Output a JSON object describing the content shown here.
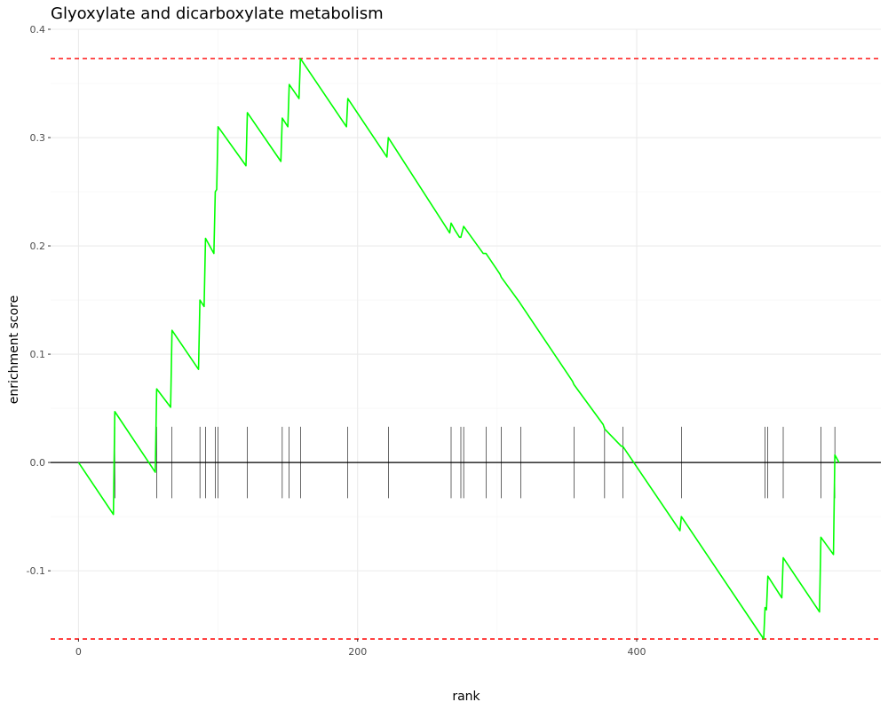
{
  "chart_data": {
    "type": "line",
    "title": "Glyoxylate and dicarboxylate metabolism",
    "xlabel": "rank",
    "ylabel": "enrichment score",
    "xlim": [
      -20,
      575
    ],
    "ylim": [
      -0.163,
      0.4
    ],
    "x_ticks": [
      0,
      200,
      400
    ],
    "x_tick_labels": [
      "0",
      "200",
      "400"
    ],
    "y_ticks": [
      -0.1,
      0.0,
      0.1,
      0.2,
      0.3,
      0.4
    ],
    "y_tick_labels": [
      "-0.1",
      "0.0",
      "0.1",
      "0.2",
      "0.3",
      "0.4"
    ],
    "grid": true,
    "series": [
      {
        "color": "#00ff00",
        "x": [
          0,
          25,
          26,
          55,
          56,
          66,
          67,
          86,
          87,
          90,
          91,
          97,
          98,
          99,
          100,
          120,
          121,
          145,
          146,
          150,
          151,
          158,
          159,
          192,
          193,
          221,
          222,
          266,
          267,
          270,
          273,
          274,
          276,
          290,
          292,
          302,
          303,
          316,
          317,
          354,
          355,
          376,
          377,
          389,
          390,
          431,
          432,
          491,
          492,
          493,
          494,
          504,
          505,
          531,
          532,
          541,
          542,
          545
        ],
        "y": [
          0.0,
          -0.048,
          0.047,
          -0.009,
          0.068,
          0.051,
          0.122,
          0.086,
          0.15,
          0.144,
          0.207,
          0.193,
          0.25,
          0.252,
          0.31,
          0.274,
          0.323,
          0.278,
          0.318,
          0.31,
          0.349,
          0.336,
          0.373,
          0.31,
          0.336,
          0.282,
          0.3,
          0.212,
          0.221,
          0.214,
          0.208,
          0.208,
          0.218,
          0.193,
          0.193,
          0.174,
          0.171,
          0.148,
          0.146,
          0.075,
          0.072,
          0.035,
          0.031,
          0.015,
          0.015,
          -0.063,
          -0.05,
          -0.163,
          -0.134,
          -0.136,
          -0.105,
          -0.125,
          -0.088,
          -0.138,
          -0.069,
          -0.085,
          0.007,
          0.0
        ]
      }
    ],
    "hit_ranks": [
      26,
      56,
      67,
      87,
      91,
      98,
      100,
      121,
      146,
      151,
      159,
      193,
      222,
      267,
      274,
      276,
      292,
      303,
      317,
      355,
      377,
      390,
      432,
      492,
      494,
      505,
      532,
      542
    ],
    "hlines": [
      {
        "y": 0.373,
        "color": "#ff0000",
        "style": "dashed"
      },
      {
        "y": -0.163,
        "color": "#ff0000",
        "style": "dashed"
      },
      {
        "y": 0.0,
        "color": "#000000",
        "style": "solid"
      }
    ]
  }
}
